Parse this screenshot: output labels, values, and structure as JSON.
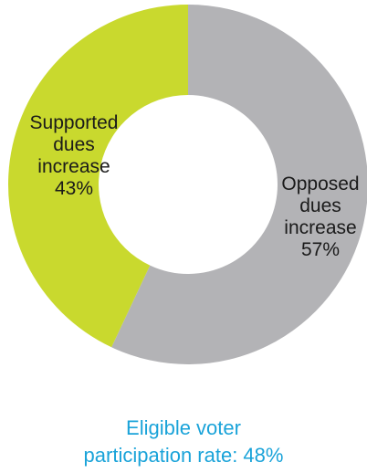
{
  "chart_data": {
    "type": "pie",
    "donut": true,
    "slices": [
      {
        "label_lines": [
          "Opposed",
          "dues",
          "increase"
        ],
        "percent_label": "57%",
        "value": 57,
        "color": "#b3b3b6"
      },
      {
        "label_lines": [
          "Supported",
          "dues",
          "increase"
        ],
        "percent_label": "43%",
        "value": 43,
        "color": "#c9d92e"
      }
    ],
    "caption_lines": [
      "Eligible voter",
      "participation rate: 48%"
    ],
    "caption_color": "#1aa3d9"
  }
}
